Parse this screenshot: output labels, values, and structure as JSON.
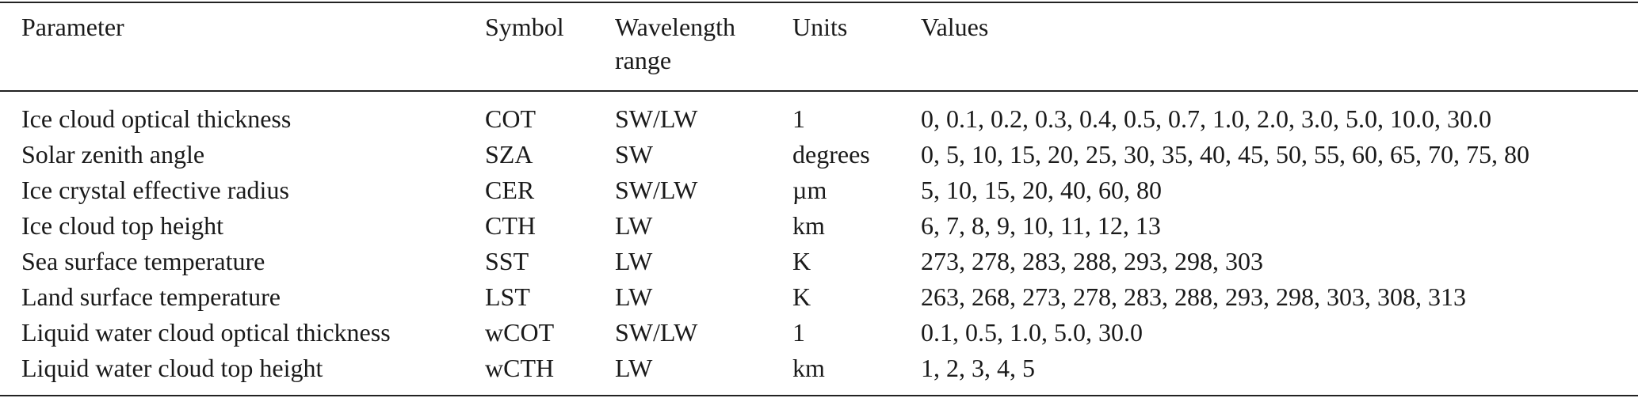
{
  "table": {
    "headers": {
      "parameter": "Parameter",
      "symbol": "Symbol",
      "wavelength_line1": "Wavelength",
      "wavelength_line2": "range",
      "units": "Units",
      "values": "Values"
    },
    "rows": [
      {
        "parameter": "Ice cloud optical thickness",
        "symbol": "COT",
        "wavelength": "SW/LW",
        "units": "1",
        "values": "0, 0.1, 0.2, 0.3, 0.4, 0.5, 0.7, 1.0, 2.0, 3.0, 5.0, 10.0, 30.0"
      },
      {
        "parameter": "Solar zenith angle",
        "symbol": "SZA",
        "wavelength": "SW",
        "units": "degrees",
        "values": "0, 5, 10, 15, 20, 25, 30, 35, 40, 45, 50, 55, 60, 65, 70, 75, 80"
      },
      {
        "parameter": "Ice crystal effective radius",
        "symbol": "CER",
        "wavelength": "SW/LW",
        "units": "µm",
        "values": "5, 10, 15, 20, 40, 60, 80"
      },
      {
        "parameter": "Ice cloud top height",
        "symbol": "CTH",
        "wavelength": "LW",
        "units": "km",
        "values": "6, 7, 8, 9, 10, 11, 12, 13"
      },
      {
        "parameter": "Sea surface temperature",
        "symbol": "SST",
        "wavelength": "LW",
        "units": "K",
        "values": "273, 278, 283, 288, 293, 298, 303"
      },
      {
        "parameter": "Land surface temperature",
        "symbol": "LST",
        "wavelength": "LW",
        "units": "K",
        "values": "263, 268, 273, 278, 283, 288, 293, 298, 303, 308, 313"
      },
      {
        "parameter": "Liquid water cloud optical thickness",
        "symbol": "wCOT",
        "wavelength": "SW/LW",
        "units": "1",
        "values": "0.1, 0.5, 1.0, 5.0, 30.0"
      },
      {
        "parameter": "Liquid water cloud top height",
        "symbol": "wCTH",
        "wavelength": "LW",
        "units": "km",
        "values": "1, 2, 3, 4, 5"
      }
    ]
  }
}
